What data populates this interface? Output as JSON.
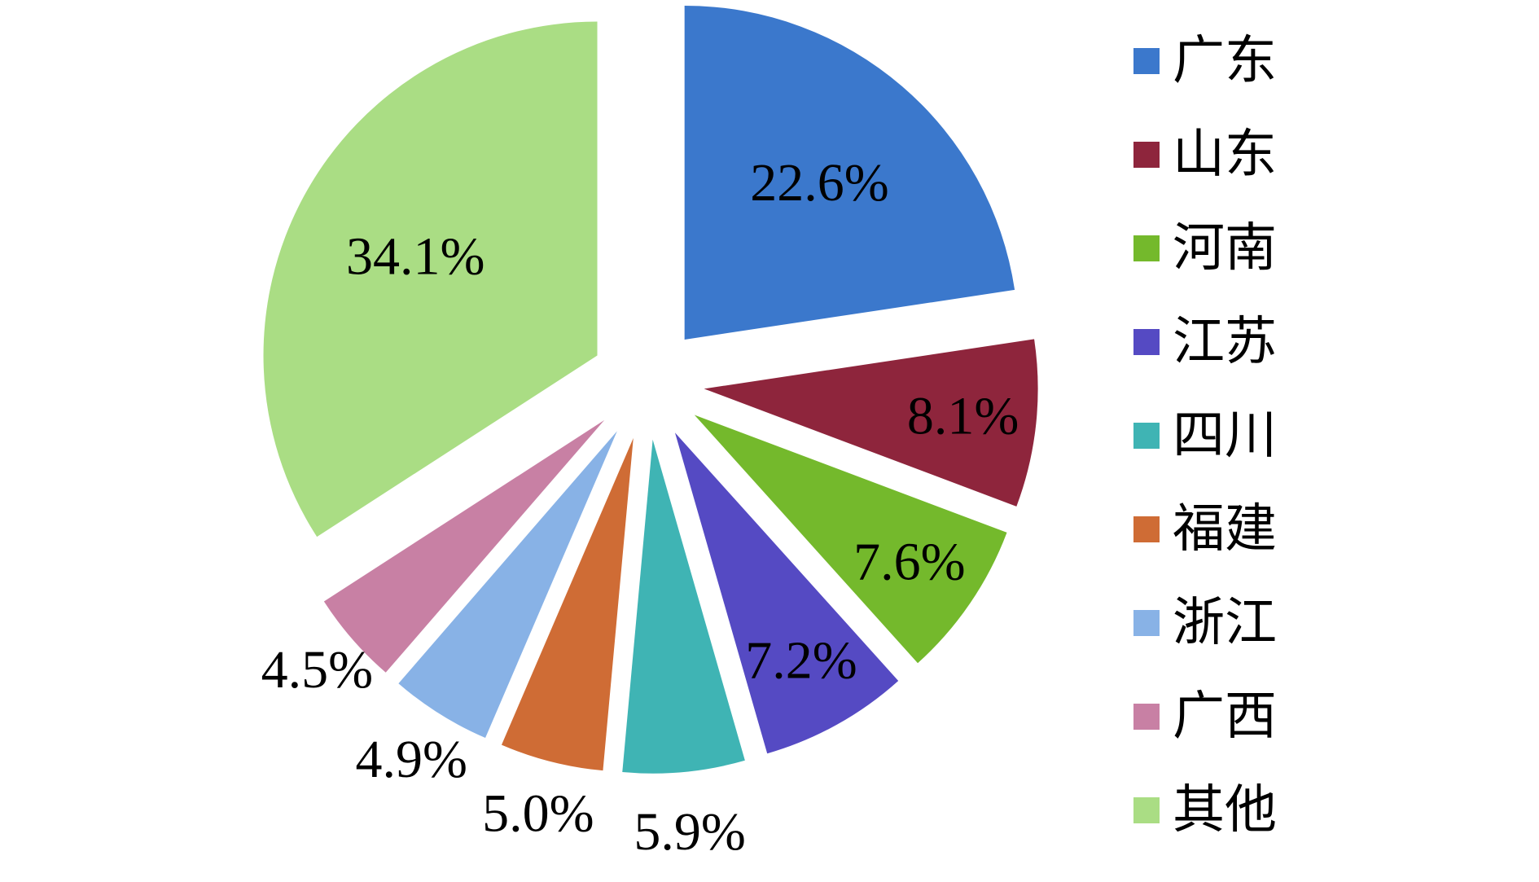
{
  "chart_data": {
    "type": "pie",
    "exploded": true,
    "start_angle_deg": 0,
    "direction": "clockwise",
    "legend_position": "right",
    "slices": [
      {
        "label": "广东",
        "value": 22.6,
        "display": "22.6%",
        "color": "#3b78cc"
      },
      {
        "label": "山东",
        "value": 8.1,
        "display": "8.1%",
        "color": "#8e253c"
      },
      {
        "label": "河南",
        "value": 7.6,
        "display": "7.6%",
        "color": "#74b92c"
      },
      {
        "label": "江苏",
        "value": 7.2,
        "display": "7.2%",
        "color": "#554ac3"
      },
      {
        "label": "四川",
        "value": 5.9,
        "display": "5.9%",
        "color": "#3fb4b4"
      },
      {
        "label": "福建",
        "value": 5.0,
        "display": "5.0%",
        "color": "#cf6c35"
      },
      {
        "label": "浙江",
        "value": 4.9,
        "display": "4.9%",
        "color": "#88b2e6"
      },
      {
        "label": "广西",
        "value": 4.5,
        "display": "4.5%",
        "color": "#c880a4"
      },
      {
        "label": "其他",
        "value": 34.1,
        "display": "34.1%",
        "color": "#aadd84"
      }
    ]
  }
}
